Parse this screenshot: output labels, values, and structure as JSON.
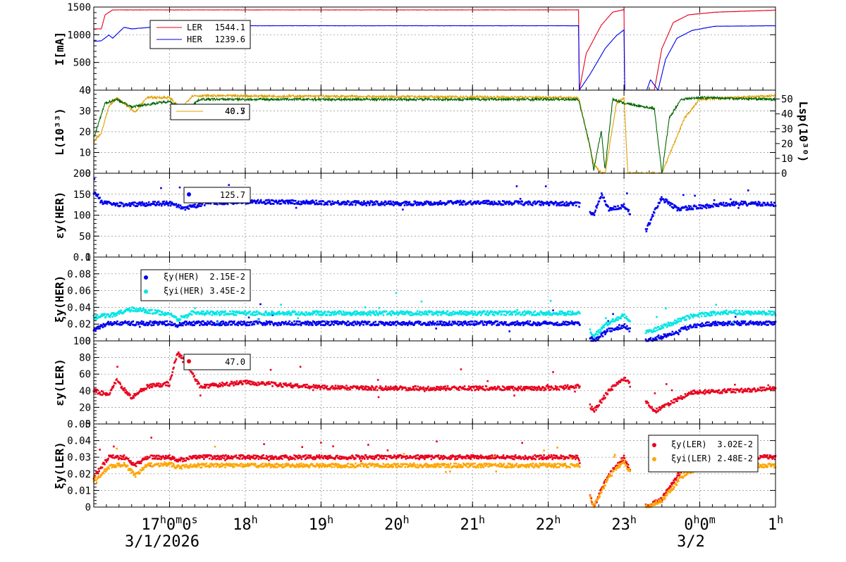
{
  "colors": {
    "ler": "#e8001c",
    "her": "#0000ee",
    "lum": "#e0a000",
    "lsp": "#006400",
    "cyan": "#00e5e5",
    "orange": "#ffa500"
  },
  "x_axis": {
    "ticks": [
      {
        "label_main": "17",
        "sup": "h",
        "extra": "0",
        "sup2": "m",
        "extra2": "0",
        "sup3": "s",
        "hour": 17
      },
      {
        "label_main": "18",
        "sup": "h",
        "hour": 18
      },
      {
        "label_main": "19",
        "sup": "h",
        "hour": 19
      },
      {
        "label_main": "20",
        "sup": "h",
        "hour": 20
      },
      {
        "label_main": "21",
        "sup": "h",
        "hour": 21
      },
      {
        "label_main": "22",
        "sup": "h",
        "hour": 22
      },
      {
        "label_main": "23",
        "sup": "h",
        "hour": 23
      },
      {
        "label_main": "0",
        "sup": "h",
        "extra": "0",
        "sup2": "m",
        "hour": 24
      },
      {
        "label_main": "1",
        "sup": "h",
        "hour": 25
      }
    ],
    "date_left": "3/1/2026",
    "date_right": "3/2",
    "range_hours": [
      16.0,
      25.0
    ]
  },
  "chart_data": [
    {
      "type": "line",
      "ylabel": "I[mA]",
      "ylim": [
        0,
        1600
      ],
      "yticks": [
        "0",
        "500",
        "1000",
        "1500"
      ],
      "series": [
        {
          "name": "LER",
          "value_label": "1544.1",
          "color": "ler",
          "points": [
            [
              16.0,
              1180
            ],
            [
              16.1,
              1180
            ],
            [
              16.15,
              1450
            ],
            [
              16.25,
              1545
            ],
            [
              22.4,
              1545
            ],
            [
              22.41,
              0
            ],
            [
              22.5,
              700
            ],
            [
              22.7,
              1250
            ],
            [
              22.85,
              1500
            ],
            [
              23.0,
              1550
            ],
            [
              23.01,
              0
            ],
            [
              23.4,
              0
            ],
            [
              23.5,
              800
            ],
            [
              23.65,
              1300
            ],
            [
              23.85,
              1450
            ],
            [
              24.2,
              1500
            ],
            [
              25.0,
              1540
            ]
          ]
        },
        {
          "name": "HER",
          "value_label": "1239.6",
          "color": "her",
          "points": [
            [
              16.0,
              940
            ],
            [
              16.1,
              950
            ],
            [
              16.2,
              1060
            ],
            [
              16.25,
              1000
            ],
            [
              16.4,
              1210
            ],
            [
              16.5,
              1180
            ],
            [
              17.0,
              1240
            ],
            [
              22.4,
              1240
            ],
            [
              22.41,
              0
            ],
            [
              22.55,
              300
            ],
            [
              22.75,
              800
            ],
            [
              22.9,
              1050
            ],
            [
              23.0,
              1160
            ],
            [
              23.01,
              0
            ],
            [
              23.3,
              0
            ],
            [
              23.35,
              200
            ],
            [
              23.45,
              0
            ],
            [
              23.55,
              600
            ],
            [
              23.7,
              1000
            ],
            [
              23.9,
              1150
            ],
            [
              24.2,
              1230
            ],
            [
              25.0,
              1240
            ]
          ]
        }
      ]
    },
    {
      "type": "line",
      "ylabel": "L(10³³)",
      "ylabel_right": "Lsp(10³⁰)",
      "ylim": [
        0,
        45
      ],
      "yticks": [
        "0",
        "10",
        "20",
        "30",
        "40"
      ],
      "ylim_right": [
        0,
        56
      ],
      "yticks_right": [
        "0",
        "10",
        "20",
        "30",
        "40",
        "50"
      ],
      "legend_value": "40.5",
      "legend_value2": "40.7",
      "series": [
        {
          "color": "lum",
          "points": [
            [
              16.0,
              17
            ],
            [
              16.1,
              22
            ],
            [
              16.2,
              36
            ],
            [
              16.3,
              41
            ],
            [
              16.55,
              33
            ],
            [
              16.7,
              41
            ],
            [
              17.0,
              41
            ],
            [
              17.15,
              35
            ],
            [
              17.3,
              42
            ],
            [
              22.4,
              41
            ],
            [
              22.6,
              5
            ],
            [
              22.7,
              0
            ],
            [
              22.75,
              0
            ],
            [
              22.9,
              38
            ],
            [
              23.0,
              41
            ],
            [
              23.05,
              0
            ],
            [
              23.5,
              0
            ],
            [
              23.6,
              10
            ],
            [
              23.8,
              30
            ],
            [
              24.0,
              40
            ],
            [
              25.0,
              42
            ]
          ]
        },
        {
          "color": "lsp",
          "points": [
            [
              16.0,
              19
            ],
            [
              16.15,
              38
            ],
            [
              16.3,
              40
            ],
            [
              16.5,
              36
            ],
            [
              17.0,
              39
            ],
            [
              17.2,
              34
            ],
            [
              17.4,
              40
            ],
            [
              22.4,
              40
            ],
            [
              22.55,
              15
            ],
            [
              22.6,
              2
            ],
            [
              22.7,
              23
            ],
            [
              22.75,
              2
            ],
            [
              22.85,
              40
            ],
            [
              23.0,
              38
            ],
            [
              23.4,
              35
            ],
            [
              23.5,
              0
            ],
            [
              23.6,
              30
            ],
            [
              23.75,
              40
            ],
            [
              24.0,
              41
            ],
            [
              25.0,
              40
            ]
          ]
        }
      ]
    },
    {
      "type": "scatter",
      "ylabel": "εy(HER)",
      "ylim": [
        0,
        200
      ],
      "yticks": [
        "0",
        "50",
        "100",
        "150",
        "200"
      ],
      "legend_value": "125.7",
      "series": [
        {
          "color": "her",
          "points": [
            [
              16.05,
              150
            ],
            [
              16.1,
              130
            ],
            [
              16.3,
              125
            ],
            [
              17.0,
              128
            ],
            [
              17.2,
              115
            ],
            [
              17.5,
              130
            ],
            [
              18.0,
              132
            ],
            [
              19.0,
              130
            ],
            [
              20.0,
              128
            ],
            [
              21.0,
              130
            ],
            [
              22.0,
              128
            ],
            [
              22.4,
              126
            ],
            [
              22.6,
              100
            ],
            [
              22.7,
              150
            ],
            [
              22.8,
              115
            ],
            [
              23.0,
              120
            ],
            [
              23.3,
              65
            ],
            [
              23.4,
              110
            ],
            [
              23.5,
              140
            ],
            [
              23.7,
              115
            ],
            [
              24.0,
              120
            ],
            [
              24.5,
              128
            ],
            [
              25.0,
              126
            ]
          ]
        }
      ]
    },
    {
      "type": "scatter",
      "ylabel": "ξy(HER)",
      "ylim": [
        0,
        0.1
      ],
      "yticks": [
        "0",
        "0.02",
        "0.04",
        "0.06",
        "0.08",
        "0.1"
      ],
      "series": [
        {
          "name": "ξy(HER)",
          "value_label": "2.15E-2",
          "color": "her",
          "points": [
            [
              16.0,
              0.013
            ],
            [
              16.2,
              0.021
            ],
            [
              17.0,
              0.021
            ],
            [
              17.1,
              0.018
            ],
            [
              17.2,
              0.021
            ],
            [
              22.4,
              0.021
            ],
            [
              22.6,
              0.0
            ],
            [
              22.8,
              0.013
            ],
            [
              23.0,
              0.018
            ],
            [
              23.3,
              0.0
            ],
            [
              23.6,
              0.008
            ],
            [
              23.9,
              0.018
            ],
            [
              24.2,
              0.021
            ],
            [
              25.0,
              0.021
            ]
          ]
        },
        {
          "name": "ξyi(HER)",
          "value_label": "3.45E-2",
          "color": "cyan",
          "points": [
            [
              16.0,
              0.028
            ],
            [
              16.3,
              0.032
            ],
            [
              16.5,
              0.038
            ],
            [
              17.0,
              0.032
            ],
            [
              17.1,
              0.025
            ],
            [
              17.3,
              0.033
            ],
            [
              22.4,
              0.033
            ],
            [
              22.6,
              0.005
            ],
            [
              22.8,
              0.022
            ],
            [
              23.0,
              0.03
            ],
            [
              23.3,
              0.01
            ],
            [
              23.6,
              0.02
            ],
            [
              23.9,
              0.03
            ],
            [
              24.3,
              0.034
            ],
            [
              25.0,
              0.033
            ]
          ]
        }
      ]
    },
    {
      "type": "scatter",
      "ylabel": "εy(LER)",
      "ylim": [
        0,
        100
      ],
      "yticks": [
        "0",
        "20",
        "40",
        "60",
        "80",
        "100"
      ],
      "legend_value": "47.0",
      "series": [
        {
          "color": "ler",
          "points": [
            [
              16.0,
              40
            ],
            [
              16.2,
              35
            ],
            [
              16.3,
              52
            ],
            [
              16.5,
              32
            ],
            [
              16.7,
              45
            ],
            [
              17.0,
              48
            ],
            [
              17.1,
              85
            ],
            [
              17.2,
              78
            ],
            [
              17.4,
              45
            ],
            [
              18.0,
              50
            ],
            [
              19.0,
              44
            ],
            [
              20.0,
              43
            ],
            [
              21.0,
              43
            ],
            [
              22.0,
              43
            ],
            [
              22.4,
              45
            ],
            [
              22.6,
              15
            ],
            [
              22.8,
              40
            ],
            [
              23.0,
              55
            ],
            [
              23.4,
              15
            ],
            [
              23.6,
              25
            ],
            [
              23.9,
              38
            ],
            [
              24.5,
              40
            ],
            [
              25.0,
              43
            ]
          ]
        }
      ]
    },
    {
      "type": "scatter",
      "ylabel": "ξy(LER)",
      "ylim": [
        0,
        0.05
      ],
      "yticks": [
        "0",
        "0.01",
        "0.02",
        "0.03",
        "0.04",
        "0.05"
      ],
      "series": [
        {
          "name": "ξy(LER)",
          "value_label": "3.02E-2",
          "color": "ler",
          "points": [
            [
              16.0,
              0.018
            ],
            [
              16.2,
              0.03
            ],
            [
              16.4,
              0.03
            ],
            [
              16.55,
              0.025
            ],
            [
              16.7,
              0.03
            ],
            [
              17.0,
              0.03
            ],
            [
              17.1,
              0.028
            ],
            [
              17.3,
              0.03
            ],
            [
              22.4,
              0.03
            ],
            [
              22.6,
              0.0
            ],
            [
              22.8,
              0.02
            ],
            [
              23.0,
              0.03
            ],
            [
              23.3,
              0.0
            ],
            [
              23.5,
              0.005
            ],
            [
              23.8,
              0.025
            ],
            [
              24.1,
              0.03
            ],
            [
              25.0,
              0.03
            ]
          ]
        },
        {
          "name": "ξyi(LER)",
          "value_label": "2.48E-2",
          "color": "orange",
          "points": [
            [
              16.0,
              0.016
            ],
            [
              16.2,
              0.024
            ],
            [
              16.4,
              0.026
            ],
            [
              16.55,
              0.019
            ],
            [
              16.7,
              0.025
            ],
            [
              17.0,
              0.026
            ],
            [
              17.1,
              0.024
            ],
            [
              17.3,
              0.025
            ],
            [
              18.0,
              0.025
            ],
            [
              22.4,
              0.025
            ],
            [
              22.6,
              0.0
            ],
            [
              22.8,
              0.018
            ],
            [
              23.0,
              0.028
            ],
            [
              23.3,
              0.0
            ],
            [
              23.5,
              0.004
            ],
            [
              23.8,
              0.02
            ],
            [
              24.1,
              0.025
            ],
            [
              25.0,
              0.025
            ]
          ]
        }
      ]
    }
  ]
}
